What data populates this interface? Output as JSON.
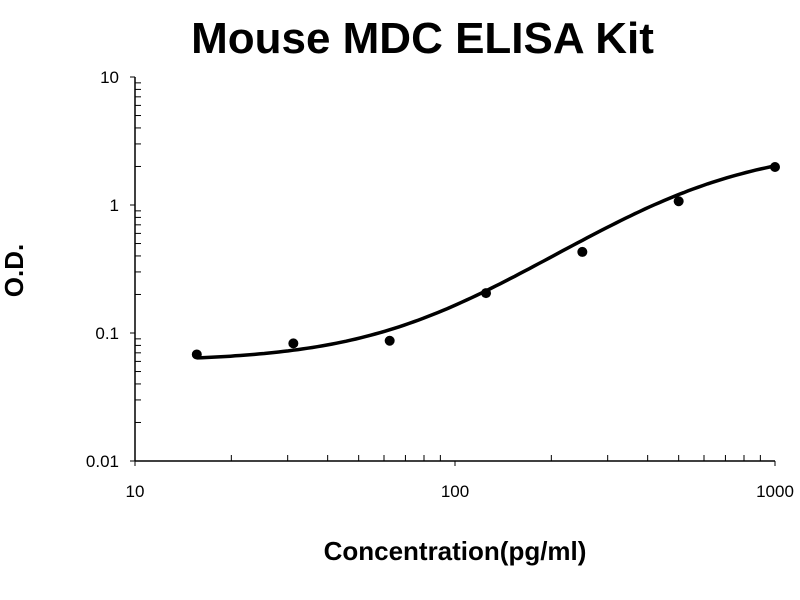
{
  "chart_data": {
    "type": "scatter",
    "title": "Mouse MDC ELISA Kit",
    "xlabel": "Concentration(pg/ml)",
    "ylabel": "O.D.",
    "x_scale": "log",
    "y_scale": "log",
    "xlim": [
      10,
      1000
    ],
    "ylim": [
      0.01,
      10
    ],
    "x_tick_labels": [
      "10",
      "100",
      "1000"
    ],
    "y_tick_labels": [
      "10",
      "1",
      "0.1",
      "0.01"
    ],
    "grid": false,
    "fit_curve": true,
    "point_color": "#000000",
    "points": [
      {
        "x": 15.6,
        "y": 0.068
      },
      {
        "x": 31.25,
        "y": 0.083
      },
      {
        "x": 62.5,
        "y": 0.087
      },
      {
        "x": 125,
        "y": 0.205
      },
      {
        "x": 250,
        "y": 0.43
      },
      {
        "x": 500,
        "y": 1.07
      },
      {
        "x": 1000,
        "y": 1.98
      }
    ]
  }
}
